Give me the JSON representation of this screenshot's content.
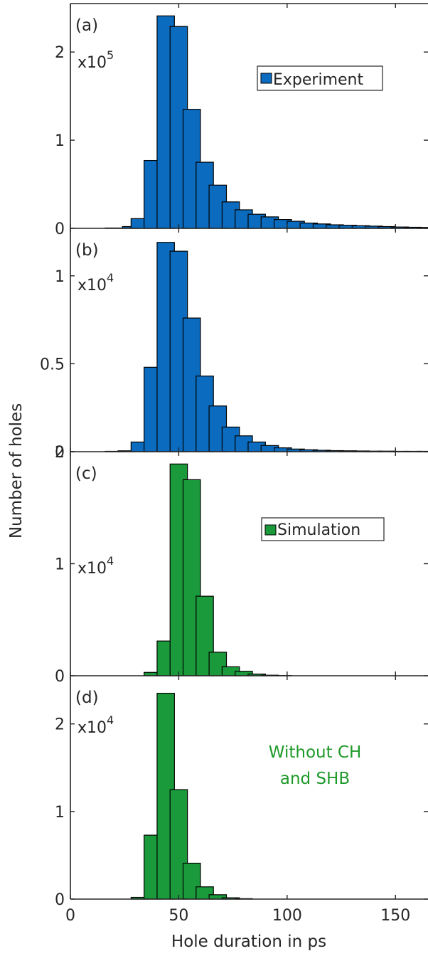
{
  "chart_data": {
    "type": "bar",
    "xlabel": "Hole duration in ps",
    "ylabel": "Number of holes",
    "xlim": [
      0,
      165
    ],
    "xticks": [
      0,
      50,
      100,
      150
    ],
    "bin_width": 8,
    "colors": {
      "experiment": "#0b6cbf",
      "simulation": "#1a9a3a"
    },
    "panels": [
      {
        "label": "(a)",
        "multiplier_base": "x10",
        "multiplier_exp": "5",
        "ylim": [
          0,
          2.55
        ],
        "yticks": [
          0,
          1,
          2
        ],
        "ytick_labels": [
          "0",
          "1",
          "2"
        ],
        "legend": "Experiment",
        "color": "experiment",
        "bins": [
          {
            "x": 8,
            "y": 0.0
          },
          {
            "x": 16,
            "y": 0.004
          },
          {
            "x": 24,
            "y": 0.02
          },
          {
            "x": 28,
            "y": 0.11
          },
          {
            "x": 34,
            "y": 0.77
          },
          {
            "x": 40,
            "y": 2.41
          },
          {
            "x": 46,
            "y": 2.29
          },
          {
            "x": 52,
            "y": 1.35
          },
          {
            "x": 58,
            "y": 0.75
          },
          {
            "x": 64,
            "y": 0.49
          },
          {
            "x": 70,
            "y": 0.3
          },
          {
            "x": 76,
            "y": 0.21
          },
          {
            "x": 82,
            "y": 0.16
          },
          {
            "x": 88,
            "y": 0.13
          },
          {
            "x": 94,
            "y": 0.1
          },
          {
            "x": 100,
            "y": 0.08
          },
          {
            "x": 106,
            "y": 0.06
          },
          {
            "x": 112,
            "y": 0.05
          },
          {
            "x": 118,
            "y": 0.04
          },
          {
            "x": 124,
            "y": 0.035
          },
          {
            "x": 130,
            "y": 0.03
          },
          {
            "x": 136,
            "y": 0.025
          },
          {
            "x": 142,
            "y": 0.02
          },
          {
            "x": 148,
            "y": 0.015
          },
          {
            "x": 154,
            "y": 0.012
          },
          {
            "x": 160,
            "y": 0.01
          }
        ]
      },
      {
        "label": "(b)",
        "multiplier_base": "x10",
        "multiplier_exp": "4",
        "ylim": [
          0,
          1.27
        ],
        "yticks": [
          0,
          0.5,
          1
        ],
        "ytick_labels": [
          "0",
          "0.5",
          "1"
        ],
        "legend": "",
        "color": "experiment",
        "bins": [
          {
            "x": 8,
            "y": 0.0
          },
          {
            "x": 16,
            "y": 0.002
          },
          {
            "x": 22,
            "y": 0.005
          },
          {
            "x": 28,
            "y": 0.055
          },
          {
            "x": 34,
            "y": 0.48
          },
          {
            "x": 40,
            "y": 1.19
          },
          {
            "x": 46,
            "y": 1.14
          },
          {
            "x": 52,
            "y": 0.76
          },
          {
            "x": 58,
            "y": 0.43
          },
          {
            "x": 64,
            "y": 0.26
          },
          {
            "x": 70,
            "y": 0.14
          },
          {
            "x": 76,
            "y": 0.09
          },
          {
            "x": 82,
            "y": 0.055
          },
          {
            "x": 88,
            "y": 0.035
          },
          {
            "x": 94,
            "y": 0.022
          },
          {
            "x": 100,
            "y": 0.015
          },
          {
            "x": 106,
            "y": 0.011
          },
          {
            "x": 112,
            "y": 0.008
          },
          {
            "x": 118,
            "y": 0.006
          },
          {
            "x": 124,
            "y": 0.005
          },
          {
            "x": 130,
            "y": 0.004
          },
          {
            "x": 136,
            "y": 0.003
          },
          {
            "x": 142,
            "y": 0.003
          },
          {
            "x": 148,
            "y": 0.002
          },
          {
            "x": 154,
            "y": 0.002
          },
          {
            "x": 160,
            "y": 0.002
          }
        ]
      },
      {
        "label": "(c)",
        "multiplier_base": "x10",
        "multiplier_exp": "4",
        "ylim": [
          0,
          2.0
        ],
        "yticks": [
          0,
          1,
          2
        ],
        "ytick_labels": [
          "0",
          "1",
          "2"
        ],
        "legend": "Simulation",
        "color": "simulation",
        "bins": [
          {
            "x": 34,
            "y": 0.03
          },
          {
            "x": 40,
            "y": 0.31
          },
          {
            "x": 46,
            "y": 1.89
          },
          {
            "x": 52,
            "y": 1.75
          },
          {
            "x": 58,
            "y": 0.71
          },
          {
            "x": 64,
            "y": 0.21
          },
          {
            "x": 70,
            "y": 0.08
          },
          {
            "x": 76,
            "y": 0.04
          },
          {
            "x": 82,
            "y": 0.015
          },
          {
            "x": 88,
            "y": 0.005
          },
          {
            "x": 94,
            "y": 0.002
          }
        ]
      },
      {
        "label": "(d)",
        "multiplier_base": "x10",
        "multiplier_exp": "4",
        "ylim": [
          0,
          2.55
        ],
        "yticks": [
          0,
          1,
          2
        ],
        "ytick_labels": [
          "0",
          "1",
          "2"
        ],
        "legend": "",
        "annotation": [
          "Without CH",
          "and SHB"
        ],
        "color": "simulation",
        "bins": [
          {
            "x": 28,
            "y": 0.02
          },
          {
            "x": 34,
            "y": 0.73
          },
          {
            "x": 40,
            "y": 2.35
          },
          {
            "x": 46,
            "y": 1.25
          },
          {
            "x": 52,
            "y": 0.41
          },
          {
            "x": 58,
            "y": 0.14
          },
          {
            "x": 64,
            "y": 0.05
          },
          {
            "x": 70,
            "y": 0.015
          },
          {
            "x": 76,
            "y": 0.005
          }
        ]
      }
    ]
  }
}
